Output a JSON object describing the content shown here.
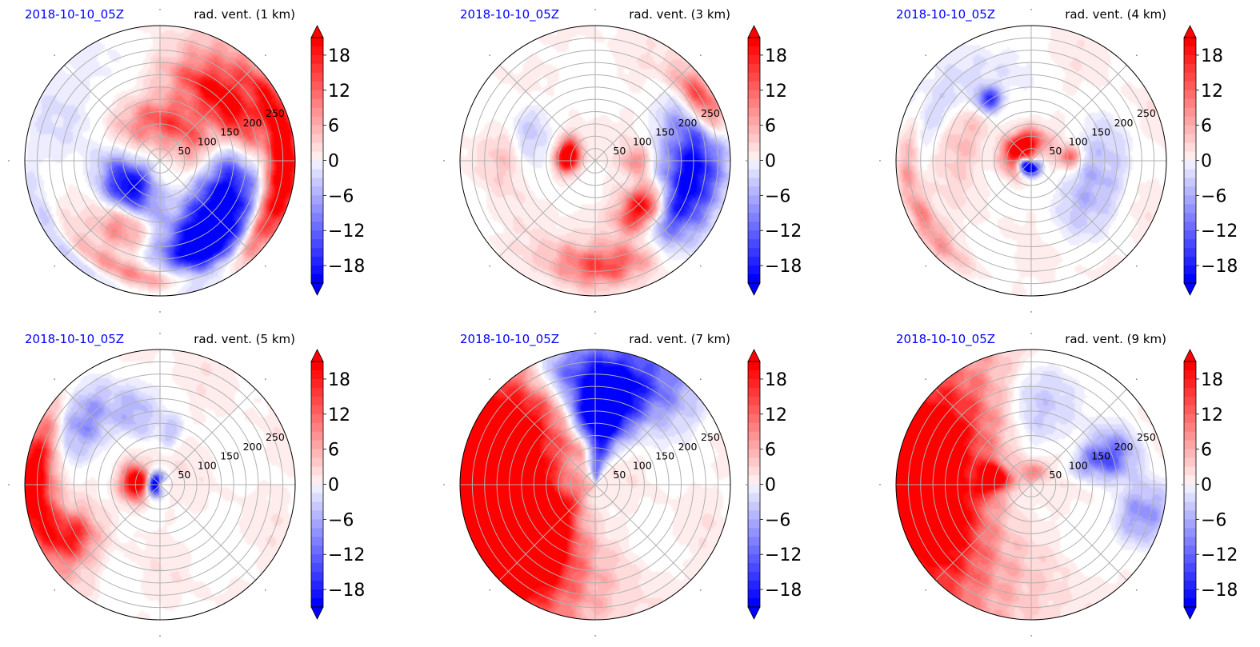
{
  "colors": {
    "title_left": "#0000ff",
    "title_right": "#000000",
    "positive": "#ff0000",
    "negative": "#0000ff",
    "neutral": "#ffffff",
    "grid": "#b0b0b0"
  },
  "chart_data": [
    {
      "type": "heatmap",
      "projection": "polar",
      "title_left": "2018-10-10_05Z",
      "title_right": "rad. vent. (1 km)",
      "r_ticks": [
        "50",
        "100",
        "150",
        "200",
        "250"
      ],
      "colorbar": {
        "ticks": [
          "18",
          "12",
          "6",
          "0",
          "−6",
          "−12",
          "−18"
        ],
        "range": [
          -21,
          21
        ],
        "extend": "both"
      },
      "features": [
        {
          "sign": 1,
          "theta": 40,
          "r": 0.65,
          "sr": 0.12,
          "st": 28,
          "amp": 24
        },
        {
          "sign": 1,
          "theta": 0,
          "r": 0.92,
          "sr": 0.08,
          "st": 35,
          "amp": 26
        },
        {
          "sign": 1,
          "theta": 75,
          "r": 0.3,
          "sr": 0.12,
          "st": 50,
          "amp": 14
        },
        {
          "sign": -1,
          "theta": -30,
          "r": 0.55,
          "sr": 0.15,
          "st": 30,
          "amp": 24
        },
        {
          "sign": -1,
          "theta": -65,
          "r": 0.75,
          "sr": 0.15,
          "st": 18,
          "amp": 22
        },
        {
          "sign": -1,
          "theta": -140,
          "r": 0.3,
          "sr": 0.12,
          "st": 30,
          "amp": 22
        },
        {
          "sign": 1,
          "theta": -100,
          "r": 0.9,
          "sr": 0.08,
          "st": 28,
          "amp": 14
        },
        {
          "sign": -1,
          "theta": -115,
          "r": 0.95,
          "sr": 0.06,
          "st": 30,
          "amp": 10
        },
        {
          "sign": 1,
          "theta": -120,
          "r": 0.55,
          "sr": 0.12,
          "st": 14,
          "amp": 10
        },
        {
          "sign": -1,
          "theta": 140,
          "r": 0.75,
          "sr": 0.25,
          "st": 40,
          "amp": 2
        }
      ]
    },
    {
      "type": "heatmap",
      "projection": "polar",
      "title_left": "2018-10-10_05Z",
      "title_right": "rad. vent. (3 km)",
      "r_ticks": [
        "50",
        "100",
        "150",
        "200",
        "250"
      ],
      "colorbar": {
        "ticks": [
          "18",
          "12",
          "6",
          "0",
          "−6",
          "−12",
          "−18"
        ],
        "range": [
          -21,
          21
        ],
        "extend": "both"
      },
      "features": [
        {
          "sign": 1,
          "theta": 170,
          "r": 0.2,
          "sr": 0.06,
          "st": 22,
          "amp": 30
        },
        {
          "sign": 1,
          "theta": -45,
          "r": 0.5,
          "sr": 0.1,
          "st": 16,
          "amp": 24
        },
        {
          "sign": 1,
          "theta": -85,
          "r": 0.78,
          "sr": 0.1,
          "st": 22,
          "amp": 14
        },
        {
          "sign": -1,
          "theta": -25,
          "r": 0.7,
          "sr": 0.15,
          "st": 22,
          "amp": 18
        },
        {
          "sign": -1,
          "theta": 5,
          "r": 0.75,
          "sr": 0.15,
          "st": 20,
          "amp": 12
        },
        {
          "sign": 1,
          "theta": 30,
          "r": 0.9,
          "sr": 0.08,
          "st": 12,
          "amp": 16
        },
        {
          "sign": 1,
          "theta": 175,
          "r": 0.65,
          "sr": 0.12,
          "st": 14,
          "amp": 6
        },
        {
          "sign": -1,
          "theta": 165,
          "r": 0.55,
          "sr": 0.12,
          "st": 20,
          "amp": 6
        },
        {
          "sign": 1,
          "theta": 0,
          "r": 0.3,
          "sr": 0.06,
          "st": 12,
          "amp": 10
        }
      ]
    },
    {
      "type": "heatmap",
      "projection": "polar",
      "title_left": "2018-10-10_05Z",
      "title_right": "rad. vent. (4 km)",
      "r_ticks": [
        "50",
        "100",
        "150",
        "200",
        "250"
      ],
      "colorbar": {
        "ticks": [
          "18",
          "12",
          "6",
          "0",
          "−6",
          "−12",
          "−18"
        ],
        "range": [
          -21,
          21
        ],
        "extend": "both"
      },
      "features": [
        {
          "sign": 1,
          "theta": 130,
          "r": 0.12,
          "sr": 0.07,
          "st": 50,
          "amp": 30
        },
        {
          "sign": -1,
          "theta": -120,
          "r": 0.05,
          "sr": 0.04,
          "st": 60,
          "amp": 30
        },
        {
          "sign": 1,
          "theta": 5,
          "r": 0.28,
          "sr": 0.05,
          "st": 10,
          "amp": 14
        },
        {
          "sign": -1,
          "theta": 125,
          "r": 0.55,
          "sr": 0.06,
          "st": 6,
          "amp": 18
        },
        {
          "sign": 1,
          "theta": 160,
          "r": 0.55,
          "sr": 0.12,
          "st": 22,
          "amp": 6
        },
        {
          "sign": 1,
          "theta": -145,
          "r": 0.9,
          "sr": 0.06,
          "st": 16,
          "amp": 7
        },
        {
          "sign": 1,
          "theta": 185,
          "r": 0.92,
          "sr": 0.05,
          "st": 20,
          "amp": 5
        },
        {
          "sign": -1,
          "theta": -20,
          "r": 0.5,
          "sr": 0.15,
          "st": 30,
          "amp": 6
        },
        {
          "sign": -1,
          "theta": 140,
          "r": 0.7,
          "sr": 0.2,
          "st": 25,
          "amp": 4
        }
      ]
    },
    {
      "type": "heatmap",
      "projection": "polar",
      "title_left": "2018-10-10_05Z",
      "title_right": "rad. vent. (5 km)",
      "r_ticks": [
        "50",
        "100",
        "150",
        "200",
        "250"
      ],
      "colorbar": {
        "ticks": [
          "18",
          "12",
          "6",
          "0",
          "−6",
          "−12",
          "−18"
        ],
        "range": [
          -21,
          21
        ],
        "extend": "both"
      },
      "features": [
        {
          "sign": 1,
          "theta": 175,
          "r": 0.18,
          "sr": 0.07,
          "st": 25,
          "amp": 28
        },
        {
          "sign": -1,
          "theta": 170,
          "r": 0.04,
          "sr": 0.04,
          "st": 60,
          "amp": 30
        },
        {
          "sign": 1,
          "theta": 180,
          "r": 0.94,
          "sr": 0.1,
          "st": 22,
          "amp": 26
        },
        {
          "sign": 1,
          "theta": -150,
          "r": 0.75,
          "sr": 0.12,
          "st": 10,
          "amp": 16
        },
        {
          "sign": -1,
          "theta": 140,
          "r": 0.75,
          "sr": 0.15,
          "st": 15,
          "amp": 10
        },
        {
          "sign": -1,
          "theta": 110,
          "r": 0.55,
          "sr": 0.12,
          "st": 10,
          "amp": 6
        },
        {
          "sign": -1,
          "theta": 80,
          "r": 0.4,
          "sr": 0.08,
          "st": 8,
          "amp": 5
        }
      ]
    },
    {
      "type": "heatmap",
      "projection": "polar",
      "title_left": "2018-10-10_05Z",
      "title_right": "rad. vent. (7 km)",
      "r_ticks": [
        "50",
        "100",
        "150",
        "200",
        "250"
      ],
      "colorbar": {
        "ticks": [
          "18",
          "12",
          "6",
          "0",
          "−6",
          "−12",
          "−18"
        ],
        "range": [
          -21,
          21
        ],
        "extend": "both"
      },
      "features": [
        {
          "sign": 1,
          "theta": 180,
          "r": 0.78,
          "sr": 0.35,
          "st": 42,
          "amp": 38
        },
        {
          "sign": 1,
          "theta": -140,
          "r": 0.6,
          "sr": 0.28,
          "st": 22,
          "amp": 22
        },
        {
          "sign": -1,
          "theta": 85,
          "r": 0.55,
          "sr": 0.3,
          "st": 16,
          "amp": 34
        },
        {
          "sign": -1,
          "theta": 60,
          "r": 0.85,
          "sr": 0.2,
          "st": 16,
          "amp": 10
        },
        {
          "sign": -1,
          "theta": 110,
          "r": 0.9,
          "sr": 0.15,
          "st": 12,
          "amp": 10
        },
        {
          "sign": 1,
          "theta": 100,
          "r": 0.3,
          "sr": 0.08,
          "st": 20,
          "amp": 8
        }
      ]
    },
    {
      "type": "heatmap",
      "projection": "polar",
      "title_left": "2018-10-10_05Z",
      "title_right": "rad. vent. (9 km)",
      "r_ticks": [
        "50",
        "100",
        "150",
        "200",
        "250"
      ],
      "colorbar": {
        "ticks": [
          "18",
          "12",
          "6",
          "0",
          "−6",
          "−12",
          "−18"
        ],
        "range": [
          -21,
          21
        ],
        "extend": "both"
      },
      "features": [
        {
          "sign": 1,
          "theta": 180,
          "r": 0.82,
          "sr": 0.32,
          "st": 40,
          "amp": 34
        },
        {
          "sign": 1,
          "theta": 170,
          "r": 0.28,
          "sr": 0.07,
          "st": 14,
          "amp": 26
        },
        {
          "sign": -1,
          "theta": 20,
          "r": 0.58,
          "sr": 0.15,
          "st": 10,
          "amp": 14
        },
        {
          "sign": -1,
          "theta": -15,
          "r": 0.85,
          "sr": 0.12,
          "st": 10,
          "amp": 10
        },
        {
          "sign": -1,
          "theta": 85,
          "r": 0.65,
          "sr": 0.25,
          "st": 22,
          "amp": 5
        },
        {
          "sign": 1,
          "theta": 95,
          "r": 0.08,
          "sr": 0.06,
          "st": 40,
          "amp": 10
        }
      ]
    }
  ]
}
